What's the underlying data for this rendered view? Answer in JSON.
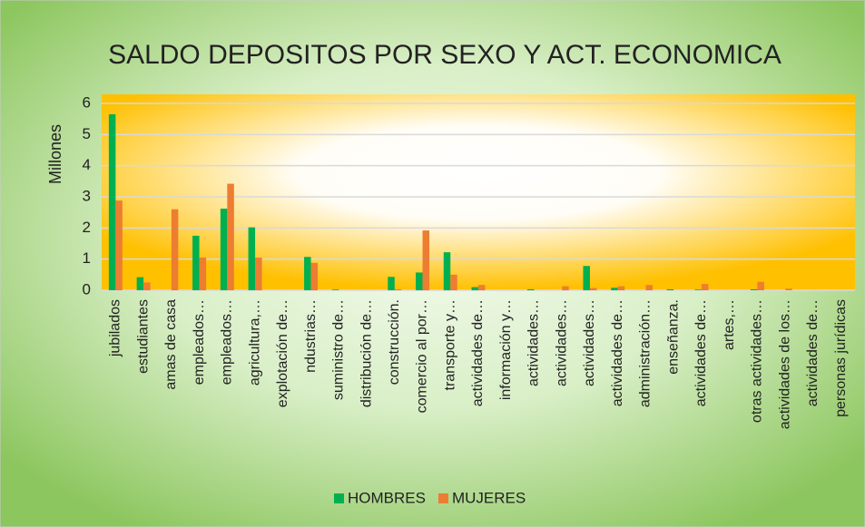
{
  "chart_data": {
    "type": "bar",
    "title": "SALDO DEPOSITOS POR SEXO Y ACT. ECONOMICA",
    "y_label": "Millones",
    "categories": [
      "jubilados",
      "estudiantes",
      "amas de casa",
      "empleados…",
      "empleados…",
      "agricultura,…",
      "explotación de…",
      "ndustrias…",
      "suministro de…",
      "distribución de…",
      "construcción.",
      "comercio al por…",
      "transporte y…",
      "actividades de…",
      "información y…",
      "actividades…",
      "actividades…",
      "actividades…",
      "actividades de…",
      "administración…",
      "enseñanza.",
      "actividades de…",
      "artes,…",
      "otras actividades…",
      "actividades de los…",
      "actividades de…",
      "personas jurídicas"
    ],
    "series": [
      {
        "name": "HOMBRES",
        "color": "#00b050",
        "values": [
          5.65,
          0.42,
          0,
          1.75,
          2.62,
          2.02,
          0,
          1.07,
          0.02,
          0,
          0.43,
          0.57,
          1.22,
          0.1,
          0,
          0.03,
          0,
          0.78,
          0.08,
          0,
          0.03,
          0.02,
          0,
          0.03,
          0,
          0,
          0
        ]
      },
      {
        "name": "MUJERES",
        "color": "#ed7d31",
        "values": [
          2.88,
          0.25,
          2.6,
          1.05,
          3.42,
          1.05,
          0,
          0.88,
          0,
          0,
          0.03,
          1.92,
          0.5,
          0.17,
          0,
          0,
          0.13,
          0.07,
          0.13,
          0.17,
          0,
          0.2,
          0,
          0.27,
          0.05,
          0,
          0
        ]
      }
    ],
    "ylim": [
      0,
      6
    ],
    "yticks": [
      0,
      1,
      2,
      3,
      4,
      5,
      6
    ],
    "grid": true,
    "legend": "bottom"
  }
}
